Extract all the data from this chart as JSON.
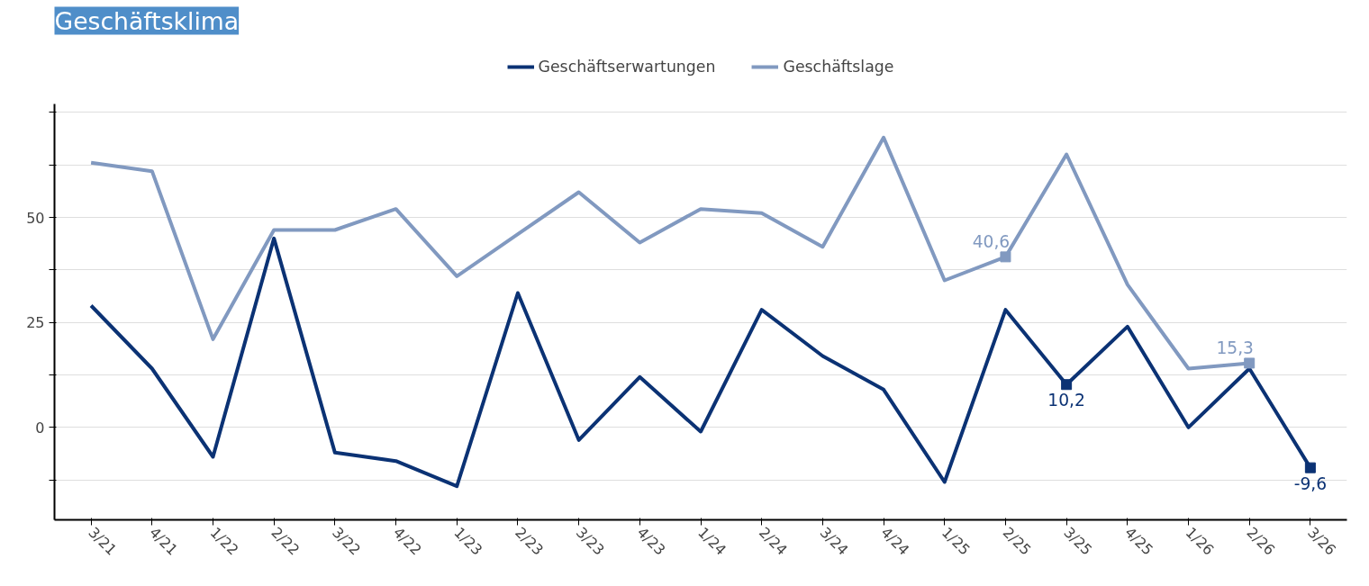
{
  "chart_data": {
    "type": "line",
    "title": "Geschäftsklima",
    "categories": [
      "3/21",
      "4/21",
      "1/22",
      "2/22",
      "3/22",
      "4/22",
      "1/23",
      "2/23",
      "3/23",
      "4/23",
      "1/24",
      "2/24",
      "3/24",
      "4/24",
      "1/25",
      "2/25",
      "3/25",
      "4/25",
      "1/26",
      "2/26",
      "3/26"
    ],
    "series": [
      {
        "name": "Geschäftserwartungen",
        "color": "#0b3274",
        "values": [
          29,
          14,
          -7,
          45,
          -6,
          -8,
          -14,
          32,
          -3,
          12,
          -1,
          28,
          17,
          9,
          -13,
          28,
          10.2,
          24,
          0,
          14,
          -9.6
        ],
        "value_labels": [
          null,
          null,
          null,
          null,
          null,
          null,
          null,
          null,
          null,
          null,
          null,
          null,
          null,
          null,
          null,
          null,
          "10,2",
          null,
          null,
          null,
          "-9,6"
        ]
      },
      {
        "name": "Geschäftslage",
        "color": "#8199c0",
        "values": [
          63,
          61,
          21,
          47,
          47,
          52,
          36,
          46,
          56,
          44,
          52,
          51,
          43,
          69,
          35,
          40.6,
          65,
          34,
          14,
          15.3,
          null
        ],
        "value_labels": [
          null,
          null,
          null,
          null,
          null,
          null,
          null,
          null,
          null,
          null,
          null,
          null,
          null,
          null,
          null,
          "40,6",
          null,
          null,
          null,
          "15,3",
          null
        ]
      }
    ],
    "ylim": [
      -22,
      77
    ],
    "yticks": [
      {
        "value": -12.5,
        "label": null
      },
      0,
      {
        "value": 12.5,
        "label": null
      },
      25,
      {
        "value": 37.5,
        "label": null
      },
      50,
      {
        "value": 62.5,
        "label": null
      },
      {
        "value": 75,
        "label": null
      }
    ],
    "grid": "y",
    "legend": "top",
    "line_style": "solid"
  }
}
